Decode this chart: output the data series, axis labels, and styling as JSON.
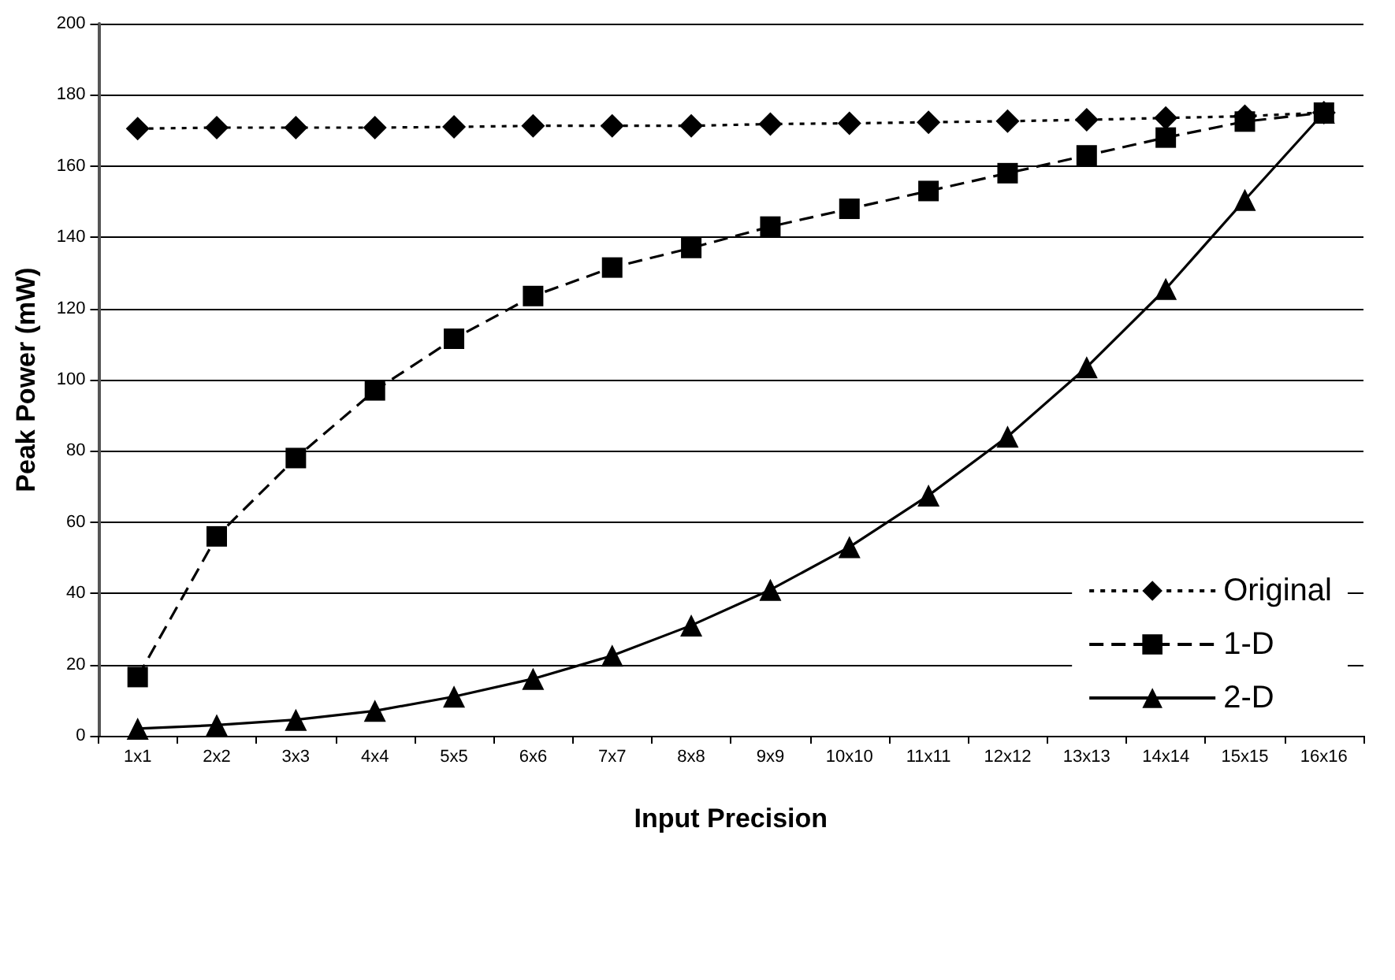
{
  "chart_data": {
    "type": "line",
    "xlabel": "Input Precision",
    "ylabel": "Peak Power (mW)",
    "categories": [
      "1x1",
      "2x2",
      "3x3",
      "4x4",
      "5x5",
      "6x6",
      "7x7",
      "8x8",
      "9x9",
      "10x10",
      "11x11",
      "12x12",
      "13x13",
      "14x14",
      "15x15",
      "16x16"
    ],
    "series": [
      {
        "name": "Original",
        "color": "#000000",
        "marker": "diamond",
        "line_style": "dotted",
        "values": [
          170.5,
          170.8,
          170.8,
          170.8,
          171,
          171.3,
          171.3,
          171.3,
          171.8,
          172,
          172.3,
          172.6,
          173,
          173.5,
          174,
          175
        ]
      },
      {
        "name": "1-D",
        "color": "#000000",
        "marker": "square",
        "line_style": "dashed",
        "values": [
          16.5,
          56,
          78,
          97,
          111.5,
          123.5,
          131.5,
          137,
          143,
          148,
          153,
          158,
          163,
          168,
          172.5,
          175
        ]
      },
      {
        "name": "2-D",
        "color": "#000000",
        "marker": "triangle",
        "line_style": "solid",
        "values": [
          2,
          3,
          4.5,
          7,
          11,
          16,
          22.5,
          31,
          41,
          53,
          67.5,
          84,
          103.5,
          125.5,
          150.5,
          175
        ]
      }
    ],
    "ylim": [
      0,
      200
    ],
    "yticks": [
      0,
      20,
      40,
      60,
      80,
      100,
      120,
      140,
      160,
      180,
      200
    ],
    "grid": "y",
    "legend": "bottom right"
  }
}
